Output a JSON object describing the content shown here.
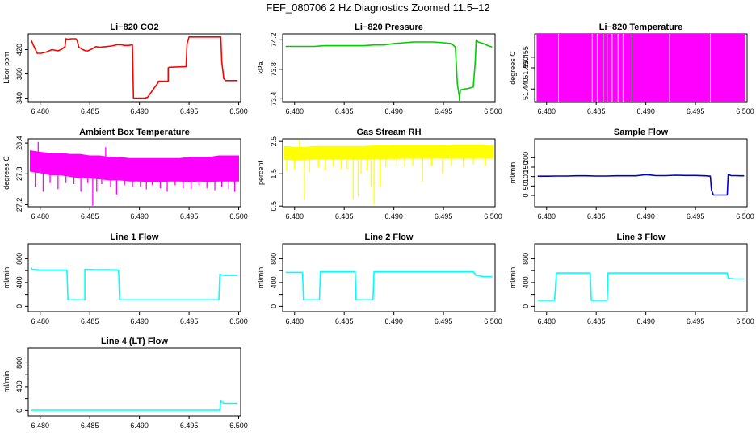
{
  "figure": {
    "title": "FEF_080706  2 Hz Diagnostics Zoomed 11.5–12"
  },
  "chart_data": [
    {
      "type": "line",
      "title": "Li−820 CO2",
      "ylabel": "Licor ppm",
      "color": "#ff0000",
      "xlim": [
        6.4788,
        6.5002
      ],
      "ylim": [
        334,
        446
      ],
      "xticks": [
        6.48,
        6.485,
        6.49,
        6.495,
        6.5
      ],
      "xtick_labels": [
        "6.480",
        "6.485",
        "6.490",
        "6.495",
        "6.500"
      ],
      "yticks": [
        340,
        380,
        420
      ],
      "ytick_labels": [
        "340",
        "380",
        "420"
      ],
      "x": [
        6.4791,
        6.4793,
        6.4797,
        6.4801,
        6.4806,
        6.4812,
        6.4818,
        6.4822,
        6.4825,
        6.4826,
        6.4829,
        6.4831,
        6.4836,
        6.4837,
        6.4839,
        6.4843,
        6.4846,
        6.4848,
        6.4852,
        6.4856,
        6.486,
        6.4866,
        6.4872,
        6.4877,
        6.4882,
        6.4885,
        6.4889,
        6.4893,
        6.4894,
        6.4906,
        6.4907,
        6.4908,
        6.4919,
        6.4919,
        6.4929,
        6.4929,
        6.493,
        6.4947,
        6.4948,
        6.495,
        6.497,
        6.4982,
        6.4983,
        6.4985,
        6.4987,
        6.4993,
        6.4999
      ],
      "y": [
        436,
        428,
        414,
        414,
        416,
        420,
        418,
        421,
        425,
        438,
        437,
        438,
        438,
        436,
        424,
        420,
        418,
        418,
        421,
        425,
        424,
        425,
        426,
        428,
        428,
        427,
        427,
        428,
        340,
        340,
        341,
        341,
        366,
        368,
        368,
        390,
        391,
        392,
        430,
        441,
        441,
        441,
        400,
        372,
        369,
        369,
        369
      ]
    },
    {
      "type": "line",
      "title": "Li−820 Pressure",
      "ylabel": "kPa",
      "color": "#00cc00",
      "xlim": [
        6.4788,
        6.5002
      ],
      "ylim": [
        73.36,
        74.28
      ],
      "xticks": [
        6.48,
        6.485,
        6.49,
        6.495,
        6.5
      ],
      "xtick_labels": [
        "6.480",
        "6.485",
        "6.490",
        "6.495",
        "6.500"
      ],
      "yticks": [
        73.4,
        73.8,
        74.2
      ],
      "ytick_labels": [
        "73.4",
        "73.8",
        "74.2"
      ],
      "x": [
        6.4791,
        6.48,
        6.481,
        6.482,
        6.483,
        6.484,
        6.485,
        6.486,
        6.487,
        6.488,
        6.489,
        6.49,
        6.491,
        6.492,
        6.493,
        6.494,
        6.495,
        6.4958,
        6.4962,
        6.4964,
        6.4966,
        6.4966,
        6.4967,
        6.497,
        6.4975,
        6.498,
        6.4982,
        6.4983,
        6.4985,
        6.499,
        6.4995,
        6.4999
      ],
      "y": [
        74.11,
        74.11,
        74.11,
        74.11,
        74.12,
        74.12,
        74.12,
        74.12,
        74.12,
        74.13,
        74.13,
        74.15,
        74.16,
        74.17,
        74.17,
        74.17,
        74.16,
        74.15,
        74.1,
        73.6,
        73.42,
        73.38,
        73.52,
        73.53,
        73.54,
        73.56,
        73.9,
        74.2,
        74.17,
        74.15,
        74.12,
        74.1
      ]
    },
    {
      "type": "bar",
      "title": "Li−820 Temperature",
      "ylabel": "degrees C",
      "color": "#ff00ff",
      "xlim": [
        6.4788,
        6.5002
      ],
      "ylim": [
        51.434,
        51.466
      ],
      "xticks": [
        6.48,
        6.485,
        6.49,
        6.495,
        6.5
      ],
      "xtick_labels": [
        "6.480",
        "6.485",
        "6.490",
        "6.495",
        "6.500"
      ],
      "yticks": [
        51.44,
        51.45,
        51.455
      ],
      "ytick_labels": [
        "51.440",
        "51.450",
        "51.455"
      ],
      "range_x": [
        6.479,
        6.5
      ],
      "range_low": 51.434,
      "range_high": 51.466,
      "gaps_x": [
        6.4812,
        6.4846,
        6.4851,
        6.4857,
        6.4861,
        6.4866,
        6.4872,
        6.4877,
        6.4886,
        6.4924,
        6.4965
      ]
    },
    {
      "type": "line",
      "title": "Ambient Box Temperature",
      "ylabel": "degrees C",
      "color": "#ff00ff",
      "xlim": [
        6.4788,
        6.5002
      ],
      "ylim": [
        27.16,
        28.48
      ],
      "xticks": [
        6.48,
        6.485,
        6.49,
        6.495,
        6.5
      ],
      "xtick_labels": [
        "6.480",
        "6.485",
        "6.490",
        "6.495",
        "6.500"
      ],
      "yticks": [
        27.2,
        27.8,
        28.4
      ],
      "ytick_labels": [
        "27.2",
        "27.8",
        "28.4"
      ],
      "band_x": [
        6.479,
        6.48,
        6.481,
        6.482,
        6.483,
        6.484,
        6.485,
        6.486,
        6.487,
        6.488,
        6.489,
        6.49,
        6.491,
        6.492,
        6.493,
        6.494,
        6.495,
        6.496,
        6.497,
        6.498,
        6.499,
        6.5
      ],
      "band_low": [
        27.85,
        27.82,
        27.78,
        27.78,
        27.75,
        27.72,
        27.72,
        27.7,
        27.68,
        27.68,
        27.66,
        27.66,
        27.65,
        27.65,
        27.66,
        27.66,
        27.65,
        27.66,
        27.65,
        27.66,
        27.66,
        27.66
      ],
      "band_high": [
        28.25,
        28.22,
        28.2,
        28.2,
        28.18,
        28.18,
        28.15,
        28.15,
        28.12,
        28.12,
        28.1,
        28.1,
        28.1,
        28.1,
        28.1,
        28.1,
        28.12,
        28.12,
        28.12,
        28.15,
        28.15,
        28.15
      ],
      "spikes": [
        [
          6.4795,
          27.55
        ],
        [
          6.4798,
          28.42
        ],
        [
          6.4803,
          27.45
        ],
        [
          6.481,
          27.62
        ],
        [
          6.4818,
          27.5
        ],
        [
          6.4826,
          27.62
        ],
        [
          6.4834,
          27.6
        ],
        [
          6.4841,
          27.45
        ],
        [
          6.4848,
          27.62
        ],
        [
          6.4853,
          27.18
        ],
        [
          6.4857,
          27.45
        ],
        [
          6.4862,
          27.6
        ],
        [
          6.4866,
          28.32
        ],
        [
          6.4871,
          27.55
        ],
        [
          6.4877,
          27.4
        ],
        [
          6.4885,
          27.58
        ],
        [
          6.4893,
          27.55
        ],
        [
          6.4901,
          27.55
        ],
        [
          6.4907,
          27.5
        ],
        [
          6.4913,
          27.58
        ],
        [
          6.4921,
          27.52
        ],
        [
          6.4928,
          27.45
        ],
        [
          6.4936,
          27.58
        ],
        [
          6.4944,
          27.52
        ],
        [
          6.4952,
          27.5
        ],
        [
          6.496,
          27.58
        ],
        [
          6.4968,
          27.52
        ],
        [
          6.4976,
          27.48
        ],
        [
          6.4983,
          27.55
        ],
        [
          6.499,
          27.5
        ],
        [
          6.4996,
          27.45
        ]
      ]
    },
    {
      "type": "line",
      "title": "Gas Stream RH",
      "ylabel": "percent",
      "color": "#ffff00",
      "xlim": [
        6.4788,
        6.5002
      ],
      "ylim": [
        0.48,
        2.58
      ],
      "xticks": [
        6.48,
        6.485,
        6.49,
        6.495,
        6.5
      ],
      "xtick_labels": [
        "6.480",
        "6.485",
        "6.490",
        "6.495",
        "6.500"
      ],
      "yticks": [
        0.5,
        1.5,
        2.5
      ],
      "ytick_labels": [
        "0.5",
        "1.5",
        "2.5"
      ],
      "band_x": [
        6.479,
        6.48,
        6.481,
        6.482,
        6.483,
        6.484,
        6.485,
        6.486,
        6.487,
        6.488,
        6.489,
        6.49,
        6.491,
        6.492,
        6.493,
        6.494,
        6.495,
        6.496,
        6.497,
        6.498,
        6.499,
        6.5
      ],
      "band_low": [
        1.95,
        1.92,
        1.93,
        1.95,
        1.95,
        1.95,
        1.95,
        1.95,
        1.95,
        1.97,
        1.97,
        1.97,
        1.98,
        1.98,
        1.98,
        1.98,
        1.98,
        1.98,
        1.98,
        1.98,
        1.98,
        1.98
      ],
      "band_high": [
        2.35,
        2.32,
        2.32,
        2.35,
        2.35,
        2.35,
        2.35,
        2.35,
        2.35,
        2.37,
        2.37,
        2.38,
        2.38,
        2.38,
        2.38,
        2.38,
        2.38,
        2.4,
        2.4,
        2.4,
        2.4,
        2.38
      ],
      "spikes": [
        [
          6.4792,
          1.6
        ],
        [
          6.48,
          1.65
        ],
        [
          6.4805,
          2.55
        ],
        [
          6.481,
          0.68
        ],
        [
          6.4815,
          1.55
        ],
        [
          6.4824,
          1.7
        ],
        [
          6.4831,
          1.6
        ],
        [
          6.4839,
          1.72
        ],
        [
          6.4847,
          1.65
        ],
        [
          6.4853,
          1.65
        ],
        [
          6.4859,
          0.7
        ],
        [
          6.4864,
          0.8
        ],
        [
          6.4867,
          1.5
        ],
        [
          6.4873,
          1.6
        ],
        [
          6.4877,
          1.1
        ],
        [
          6.488,
          0.55
        ],
        [
          6.4886,
          1.1
        ],
        [
          6.4892,
          1.7
        ],
        [
          6.4903,
          1.75
        ],
        [
          6.4911,
          1.7
        ],
        [
          6.4919,
          1.75
        ],
        [
          6.4929,
          1.25
        ],
        [
          6.4938,
          1.75
        ],
        [
          6.4949,
          1.5
        ],
        [
          6.4958,
          1.75
        ],
        [
          6.497,
          1.7
        ],
        [
          6.498,
          1.8
        ],
        [
          6.4992,
          1.75
        ]
      ]
    },
    {
      "type": "line",
      "title": "Sample Flow",
      "ylabel": "ml/min",
      "color": "#0000cc",
      "xlim": [
        6.4788,
        6.5002
      ],
      "ylim": [
        -60,
        300
      ],
      "xticks": [
        6.48,
        6.485,
        6.49,
        6.495,
        6.5
      ],
      "xtick_labels": [
        "6.480",
        "6.485",
        "6.490",
        "6.495",
        "6.500"
      ],
      "yticks": [
        0,
        50,
        100,
        150,
        200
      ],
      "ytick_labels": [
        "0",
        "50",
        "100",
        "150",
        "200"
      ],
      "x": [
        6.4791,
        6.48,
        6.481,
        6.482,
        6.483,
        6.484,
        6.485,
        6.486,
        6.487,
        6.488,
        6.489,
        6.4895,
        6.49,
        6.4905,
        6.491,
        6.492,
        6.493,
        6.494,
        6.495,
        6.496,
        6.4965,
        6.4966,
        6.4968,
        6.4975,
        6.4982,
        6.4983,
        6.4986,
        6.499,
        6.4995,
        6.4999
      ],
      "y": [
        102,
        102,
        103,
        103,
        104,
        104,
        103,
        103,
        104,
        104,
        104,
        107,
        110,
        108,
        105,
        105,
        107,
        106,
        106,
        104,
        102,
        30,
        2,
        2,
        2,
        110,
        105,
        105,
        104,
        104
      ]
    },
    {
      "type": "line",
      "title": "Line 1 Flow",
      "ylabel": "ml/min",
      "color": "#00ffff",
      "xlim": [
        6.4788,
        6.5002
      ],
      "ylim": [
        -90,
        1050
      ],
      "xticks": [
        6.48,
        6.485,
        6.49,
        6.495,
        6.5
      ],
      "xtick_labels": [
        "6.480",
        "6.485",
        "6.490",
        "6.495",
        "6.500"
      ],
      "yticks": [
        0,
        200,
        400,
        600,
        800
      ],
      "ytick_labels": [
        "0",
        "",
        "400",
        "",
        "800"
      ],
      "x": [
        6.4791,
        6.4792,
        6.48,
        6.481,
        6.482,
        6.4827,
        6.4828,
        6.4845,
        6.4845,
        6.4855,
        6.487,
        6.4879,
        6.488,
        6.49,
        6.492,
        6.494,
        6.496,
        6.498,
        6.4981,
        6.4985,
        6.499,
        6.4999
      ],
      "y": [
        650,
        620,
        610,
        610,
        610,
        610,
        110,
        110,
        620,
        615,
        615,
        610,
        110,
        110,
        110,
        110,
        110,
        110,
        540,
        520,
        520,
        520
      ]
    },
    {
      "type": "line",
      "title": "Line 2 Flow",
      "ylabel": "ml/min",
      "color": "#00ffff",
      "xlim": [
        6.4788,
        6.5002
      ],
      "ylim": [
        -90,
        1050
      ],
      "xticks": [
        6.48,
        6.485,
        6.49,
        6.495,
        6.5
      ],
      "xtick_labels": [
        "6.480",
        "6.485",
        "6.490",
        "6.495",
        "6.500"
      ],
      "yticks": [
        0,
        200,
        400,
        600,
        800
      ],
      "ytick_labels": [
        "0",
        "",
        "400",
        "",
        "800"
      ],
      "x": [
        6.4791,
        6.48,
        6.4808,
        6.4809,
        6.4825,
        6.4826,
        6.484,
        6.4845,
        6.4861,
        6.4862,
        6.4879,
        6.488,
        6.49,
        6.492,
        6.494,
        6.496,
        6.498,
        6.4983,
        6.499,
        6.4999
      ],
      "y": [
        570,
        570,
        570,
        110,
        110,
        580,
        580,
        580,
        580,
        110,
        110,
        580,
        580,
        580,
        580,
        580,
        580,
        520,
        500,
        500
      ]
    },
    {
      "type": "line",
      "title": "Line 3 Flow",
      "ylabel": "ml/min",
      "color": "#00ffff",
      "xlim": [
        6.4788,
        6.5002
      ],
      "ylim": [
        -90,
        1050
      ],
      "xticks": [
        6.48,
        6.485,
        6.49,
        6.495,
        6.5
      ],
      "xtick_labels": [
        "6.480",
        "6.485",
        "6.490",
        "6.495",
        "6.500"
      ],
      "yticks": [
        0,
        200,
        400,
        600,
        800
      ],
      "ytick_labels": [
        "0",
        "",
        "400",
        "",
        "800"
      ],
      "x": [
        6.4791,
        6.48,
        6.4808,
        6.481,
        6.482,
        6.4828,
        6.4844,
        6.4845,
        6.4861,
        6.4862,
        6.488,
        6.49,
        6.492,
        6.494,
        6.496,
        6.4982,
        6.4983,
        6.499,
        6.4999
      ],
      "y": [
        100,
        100,
        100,
        560,
        560,
        560,
        560,
        100,
        100,
        560,
        560,
        560,
        560,
        560,
        560,
        560,
        470,
        460,
        460
      ]
    },
    {
      "type": "line",
      "title": "Line 4 (LT) Flow",
      "ylabel": "ml/min",
      "color": "#00ffff",
      "xlim": [
        6.4788,
        6.5002
      ],
      "ylim": [
        -90,
        1050
      ],
      "xticks": [
        6.48,
        6.485,
        6.49,
        6.495,
        6.5
      ],
      "xtick_labels": [
        "6.480",
        "6.485",
        "6.490",
        "6.495",
        "6.500"
      ],
      "yticks": [
        0,
        200,
        400,
        600,
        800
      ],
      "ytick_labels": [
        "0",
        "",
        "400",
        "",
        "800"
      ],
      "x": [
        6.4791,
        6.482,
        6.485,
        6.488,
        6.491,
        6.494,
        6.497,
        6.4981,
        6.4982,
        6.4985,
        6.499,
        6.4999
      ],
      "y": [
        5,
        5,
        5,
        5,
        5,
        5,
        5,
        5,
        160,
        120,
        120,
        120
      ]
    }
  ]
}
